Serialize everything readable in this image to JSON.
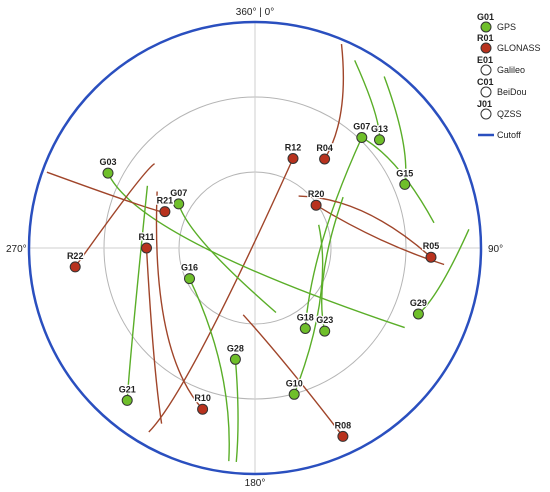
{
  "directions": {
    "north": "360° | 0°",
    "east": "90°",
    "south": "180°",
    "west": "270°"
  },
  "legend": {
    "systems": [
      {
        "id": "G01",
        "name": "GPS",
        "color": "#6fbf2a"
      },
      {
        "id": "R01",
        "name": "GLONASS",
        "color": "#b8321e"
      },
      {
        "id": "E01",
        "name": "Galileo",
        "color": "#ffffff"
      },
      {
        "id": "C01",
        "name": "BeiDou",
        "color": "#ffffff"
      },
      {
        "id": "J01",
        "name": "QZSS",
        "color": "#ffffff"
      }
    ],
    "cutoff": {
      "name": "Cutoff",
      "color": "#2a4fbf"
    }
  },
  "colors": {
    "gps": "#6fbf2a",
    "gps_track": "#5aae28",
    "glonass": "#b8321e",
    "glonass_track": "#a0452a",
    "cutoff": "#2a4fbf",
    "grid": "#b5b5b5"
  },
  "satellites": [
    {
      "id": "G07",
      "system": "gps",
      "track": [
        [
          0.68,
          44
        ],
        [
          0.75,
          58
        ],
        [
          0.8,
          82
        ]
      ]
    },
    {
      "id": "R12",
      "system": "glonass",
      "track": [
        [
          0.43,
          23
        ],
        [
          0.71,
          205
        ],
        [
          0.94,
          210
        ]
      ]
    },
    {
      "id": "G13",
      "system": "gps",
      "track": [
        [
          0.73,
          49
        ],
        [
          0.8,
          44
        ],
        [
          0.94,
          28
        ]
      ]
    },
    {
      "id": "R04",
      "system": "glonass",
      "track": [
        [
          0.5,
          38
        ],
        [
          0.71,
          36
        ],
        [
          0.98,
          23
        ]
      ]
    },
    {
      "id": "G03",
      "system": "gps",
      "track": [
        [
          0.73,
          297
        ],
        [
          0.52,
          275
        ],
        [
          0.75,
          118
        ]
      ]
    },
    {
      "id": "R20",
      "system": "glonass",
      "track": [
        [
          0.33,
          55
        ],
        [
          0.55,
          88
        ],
        [
          0.84,
          95
        ]
      ]
    },
    {
      "id": "G15",
      "system": "gps",
      "track": [
        [
          0.72,
          67
        ],
        [
          0.82,
          57
        ],
        [
          0.95,
          37
        ]
      ]
    },
    {
      "id": "G07",
      "system": "gps",
      "track": [
        [
          0.39,
          300
        ],
        [
          0.3,
          280
        ],
        [
          0.3,
          162
        ]
      ]
    },
    {
      "id": "G18",
      "system": "gps",
      "track": [
        [
          0.42,
          148
        ],
        [
          0.25,
          90
        ],
        [
          0.68,
          44
        ]
      ]
    },
    {
      "id": "R21",
      "system": "glonass",
      "track": [
        [
          0.43,
          292
        ],
        [
          0.4,
          290
        ],
        [
          0.98,
          290
        ]
      ]
    },
    {
      "id": "R05",
      "system": "glonass",
      "track": [
        [
          0.78,
          93
        ],
        [
          0.53,
          65
        ],
        [
          0.3,
          40
        ]
      ]
    },
    {
      "id": "R11",
      "system": "glonass",
      "track": [
        [
          0.48,
          270
        ],
        [
          0.7,
          220
        ],
        [
          0.88,
          208
        ]
      ]
    },
    {
      "id": "G16",
      "system": "gps",
      "track": [
        [
          0.32,
          245
        ],
        [
          0.55,
          190
        ],
        [
          0.95,
          187
        ]
      ]
    },
    {
      "id": "R22",
      "system": "glonass",
      "track": [
        [
          0.8,
          264
        ],
        [
          0.6,
          305
        ],
        [
          0.58,
          310
        ]
      ]
    },
    {
      "id": "G29",
      "system": "gps",
      "track": [
        [
          0.78,
          112
        ],
        [
          0.84,
          105
        ],
        [
          0.95,
          85
        ]
      ]
    },
    {
      "id": "G23",
      "system": "gps",
      "track": [
        [
          0.48,
          140
        ],
        [
          0.3,
          120
        ],
        [
          0.45,
          60
        ]
      ]
    },
    {
      "id": "G28",
      "system": "gps",
      "track": [
        [
          0.5,
          190
        ],
        [
          0.75,
          185
        ],
        [
          0.95,
          185
        ]
      ]
    },
    {
      "id": "G10",
      "system": "gps",
      "track": [
        [
          0.67,
          165
        ],
        [
          0.4,
          120
        ],
        [
          0.3,
          70
        ]
      ]
    },
    {
      "id": "R10",
      "system": "glonass",
      "track": [
        [
          0.75,
          198
        ],
        [
          0.65,
          225
        ],
        [
          0.5,
          300
        ]
      ]
    },
    {
      "id": "G21",
      "system": "gps",
      "track": [
        [
          0.88,
          220
        ],
        [
          0.72,
          230
        ],
        [
          0.55,
          300
        ]
      ]
    },
    {
      "id": "R08",
      "system": "glonass",
      "track": [
        [
          0.92,
          155
        ],
        [
          0.52,
          165
        ],
        [
          0.3,
          190
        ]
      ]
    }
  ]
}
